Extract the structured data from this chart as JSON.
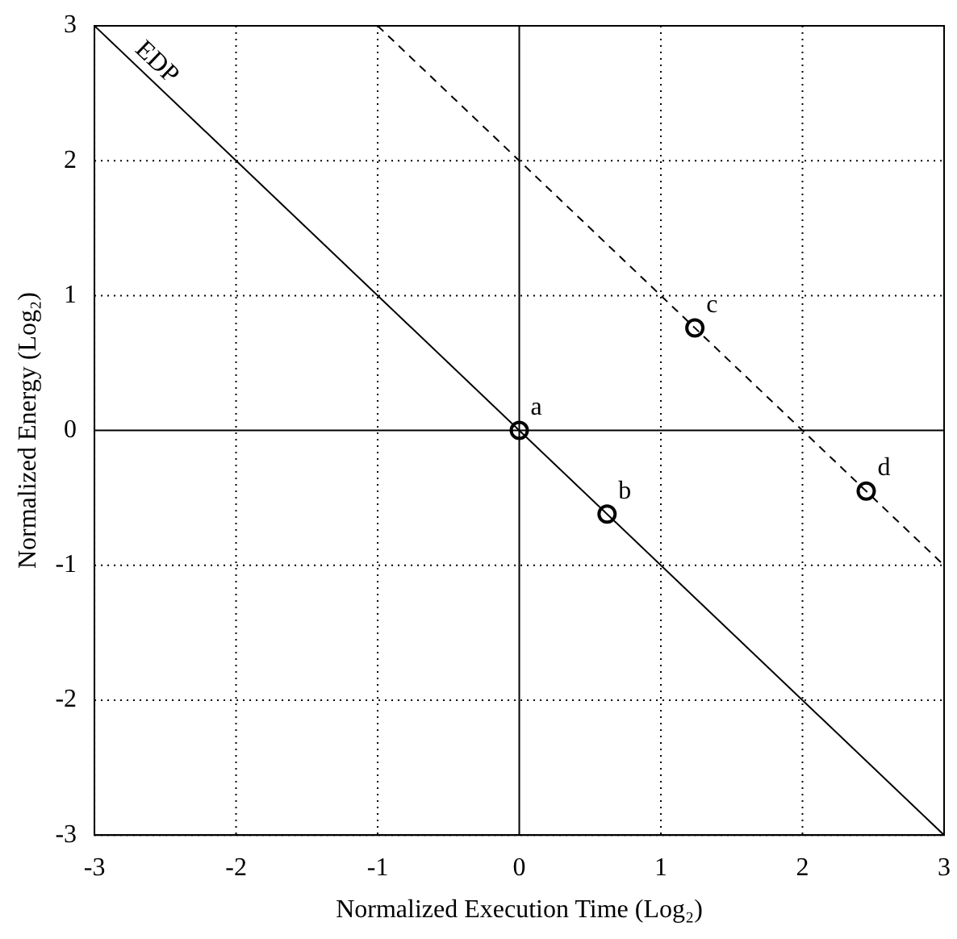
{
  "chart_data": {
    "type": "scatter",
    "xlabel": "Normalized Execution Time (Log₂)",
    "ylabel": "Normalized Energy (Log₂)",
    "xlim": [
      -3,
      3
    ],
    "ylim": [
      -3,
      3
    ],
    "xticks": [
      -3,
      -2,
      -1,
      0,
      1,
      2,
      3
    ],
    "yticks": [
      -3,
      -2,
      -1,
      0,
      1,
      2,
      3
    ],
    "grid": true,
    "legend": false,
    "series": [
      {
        "type": "line",
        "color": "#000000",
        "line_style": "solid",
        "marker": "none",
        "x": [
          0,
          0
        ],
        "values": [
          -3,
          3
        ]
      },
      {
        "type": "line",
        "color": "#000000",
        "line_style": "solid",
        "marker": "none",
        "x": [
          -3,
          3
        ],
        "values": [
          0,
          0
        ]
      },
      {
        "type": "line",
        "name": "EDP",
        "color": "#000000",
        "line_style": "solid",
        "marker": "none",
        "x": [
          -3,
          3
        ],
        "values": [
          3,
          -3
        ]
      },
      {
        "type": "line",
        "color": "#000000",
        "line_style": "dashed",
        "marker": "none",
        "x": [
          -1,
          3
        ],
        "values": [
          3,
          -1
        ]
      },
      {
        "type": "scatter",
        "color": "#000000",
        "marker": "circle",
        "x": [
          0,
          0.62,
          1.24,
          2.45
        ],
        "values": [
          0,
          -0.62,
          0.76,
          -0.45
        ],
        "value_labels": [
          "a",
          "b",
          "c",
          "d"
        ]
      }
    ]
  }
}
